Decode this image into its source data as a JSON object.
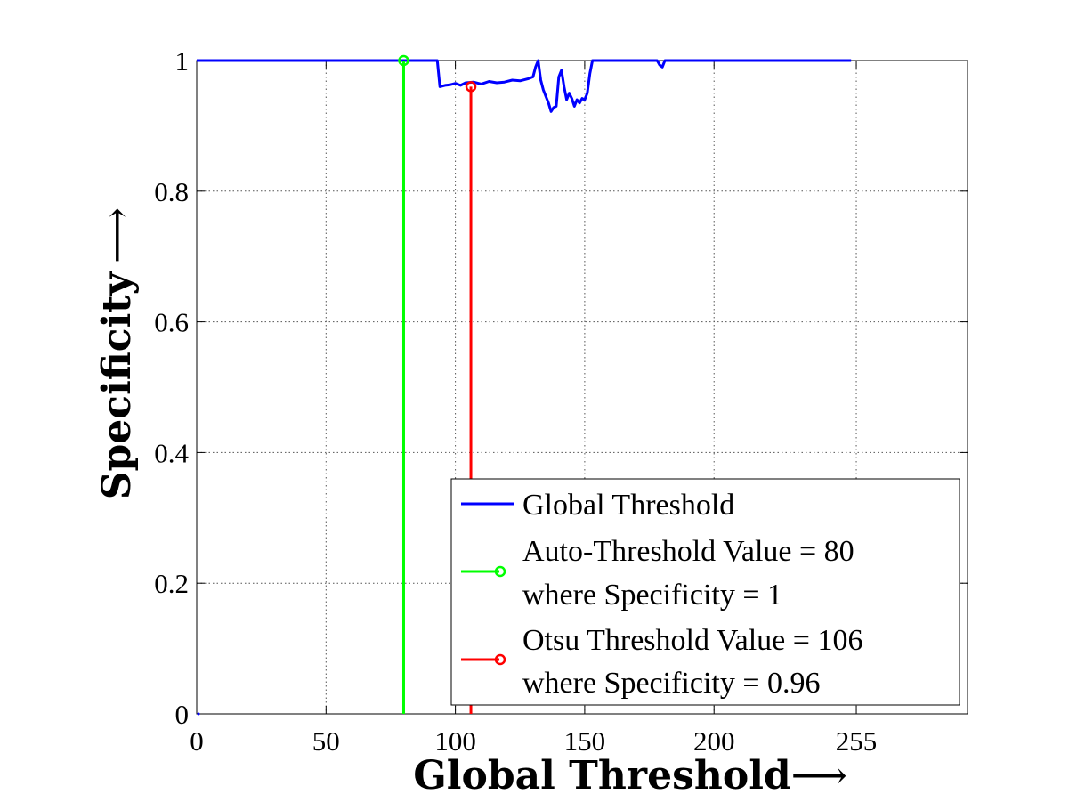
{
  "chart_data": {
    "type": "line",
    "xlabel": "Global Threshold",
    "xlabel_arrow": "⟶",
    "ylabel": "Specificity",
    "ylabel_arrow": "⟶",
    "xlim": [
      0,
      298
    ],
    "ylim": [
      0,
      1
    ],
    "xticks": [
      0,
      50,
      100,
      150,
      200,
      255
    ],
    "xtick_labels": [
      "0",
      "50",
      "100",
      "150",
      "200",
      "255"
    ],
    "yticks": [
      0,
      0.2,
      0.4,
      0.6,
      0.8,
      1
    ],
    "ytick_labels": [
      "0",
      "0.2",
      "0.4",
      "0.6",
      "0.8",
      "1"
    ],
    "grid": true,
    "legend_position": "bottom-right",
    "series": [
      {
        "name": "Global Threshold",
        "color": "#0000ff",
        "style": "line",
        "points": [
          [
            0,
            1
          ],
          [
            93,
            1
          ],
          [
            94,
            0.96
          ],
          [
            96,
            0.962
          ],
          [
            98,
            0.963
          ],
          [
            100,
            0.965
          ],
          [
            102,
            0.962
          ],
          [
            104,
            0.966
          ],
          [
            107,
            0.967
          ],
          [
            110,
            0.964
          ],
          [
            113,
            0.968
          ],
          [
            116,
            0.966
          ],
          [
            119,
            0.967
          ],
          [
            122,
            0.97
          ],
          [
            125,
            0.969
          ],
          [
            128,
            0.972
          ],
          [
            130,
            0.975
          ],
          [
            131,
            0.99
          ],
          [
            132,
            1
          ],
          [
            133,
            0.97
          ],
          [
            134,
            0.955
          ],
          [
            135,
            0.945
          ],
          [
            136,
            0.935
          ],
          [
            137,
            0.922
          ],
          [
            138,
            0.928
          ],
          [
            139,
            0.93
          ],
          [
            140,
            0.975
          ],
          [
            141,
            0.985
          ],
          [
            142,
            0.96
          ],
          [
            143,
            0.94
          ],
          [
            144,
            0.95
          ],
          [
            145,
            0.942
          ],
          [
            146,
            0.93
          ],
          [
            147,
            0.94
          ],
          [
            148,
            0.935
          ],
          [
            149,
            0.942
          ],
          [
            150,
            0.94
          ],
          [
            151,
            0.95
          ],
          [
            152,
            0.98
          ],
          [
            153,
            1
          ],
          [
            178,
            1
          ],
          [
            179,
            0.993
          ],
          [
            180,
            0.99
          ],
          [
            181,
            1
          ],
          [
            253,
            1
          ]
        ]
      },
      {
        "name": "Auto-Threshold Value = 80",
        "name_line2": "where Specificity = 1",
        "color": "#00ff00",
        "style": "stem",
        "x": 80,
        "y": 1
      },
      {
        "name": "Otsu Threshold Value = 106",
        "name_line2": "where Specificity = 0.96",
        "color": "#ff0000",
        "style": "stem",
        "x": 106,
        "y": 0.96
      }
    ]
  }
}
